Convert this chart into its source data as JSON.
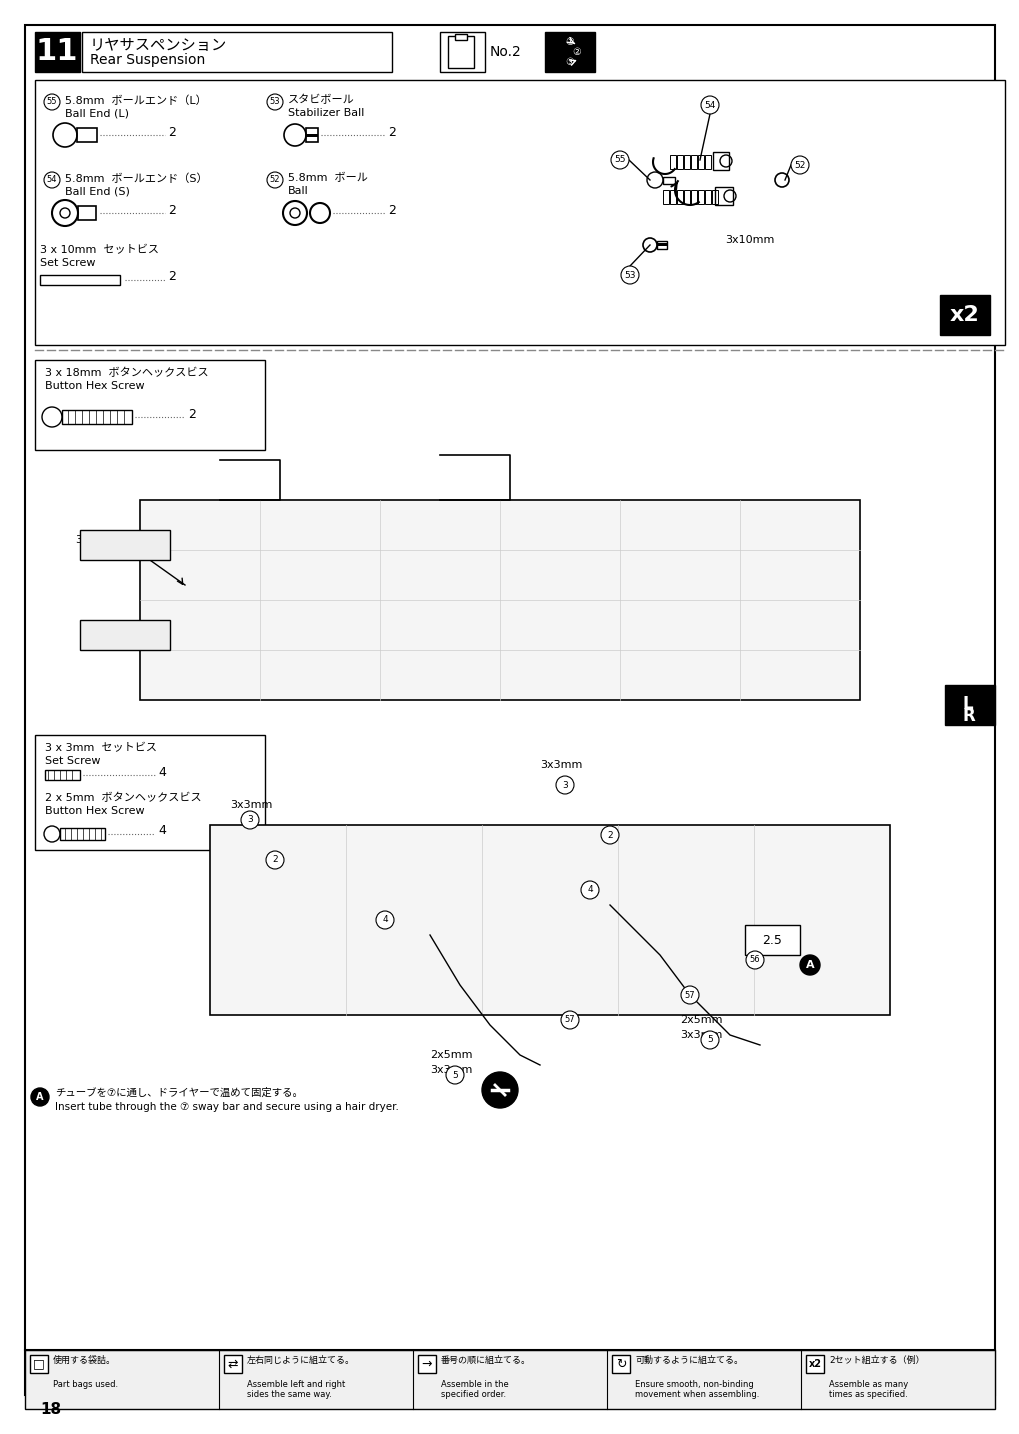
{
  "page_number": "18",
  "bg_color": "#ffffff",
  "border_color": "#000000",
  "step_number": "11",
  "step_title_jp": "リヤサスペンション",
  "step_title_en": "Rear Suspension",
  "tool": "No.2",
  "section1_parts": [
    {
      "num": "55",
      "name_jp": "5.8mm ボールエンド（L）",
      "name_en": "Ball End (L)",
      "qty": "2"
    },
    {
      "num": "53",
      "name_jp": "スタビボール",
      "name_en": "Stabilizer Ball",
      "qty": "2"
    },
    {
      "num": "54",
      "name_jp": "5.8mm ボールエンド（S）",
      "name_en": "Ball End (S)",
      "qty": "2"
    },
    {
      "num": "52",
      "name_jp": "5.8mm ボール",
      "name_en": "Ball",
      "qty": "2"
    },
    {
      "num": "",
      "name_jp": "3 x 10mm セットビス",
      "name_en": "Set Screw",
      "qty": "2"
    }
  ],
  "section2_parts": [
    {
      "num": "",
      "name_jp": "3 x 18mm ボタンヘックスビス",
      "name_en": "Button Hex Screw",
      "qty": "2"
    }
  ],
  "section3_parts": [
    {
      "num": "",
      "name_jp": "3 x 3mm セットビス",
      "name_en": "Set Screw",
      "qty": "4"
    },
    {
      "num": "",
      "name_jp": "2 x 5mm ボタンヘックスビス",
      "name_en": "Button Hex Screw",
      "qty": "4"
    }
  ],
  "note_A_jp": "チューブを⑦に通し、ドライヤーで温めて固定する。",
  "note_A_en": "Insert tube through the ⑦ sway bar and secure using a hair dryer.",
  "footer_items": [
    {
      "icon": "□",
      "jp": "使用する袋詰。",
      "en": "Part bags used."
    },
    {
      "icon": "⇄",
      "jp": "左右同じように組立てる。",
      "en": "Assemble left and right\nsides the same way."
    },
    {
      "icon": "→",
      "jp": "番号の順に組立てる。",
      "en": "Assemble in the\nspecified order."
    },
    {
      "icon": "↻",
      "jp": "可動するように組立てる。",
      "en": "Ensure smooth, non-binding\nmovement when assembling."
    },
    {
      "icon": "x2",
      "jp": "2セット組立する（例）",
      "en": "Assemble as many\ntimes as specified."
    }
  ],
  "dashed_line_color": "#888888",
  "x2_box_color": "#000000",
  "lr_box_color": "#000000",
  "label_3x18mm": "3x18mm",
  "label_3x3mm_left": "3x3mm",
  "label_3x3mm_right": "3x3mm",
  "label_3x10mm": "3x10mm",
  "label_2x5mm_left": "2x5mm",
  "label_2x5mm_right": "2x5mm",
  "label_3x3mm_bottom_left": "3x3mm",
  "label_3x3mm_bottom_right": "3x3mm"
}
